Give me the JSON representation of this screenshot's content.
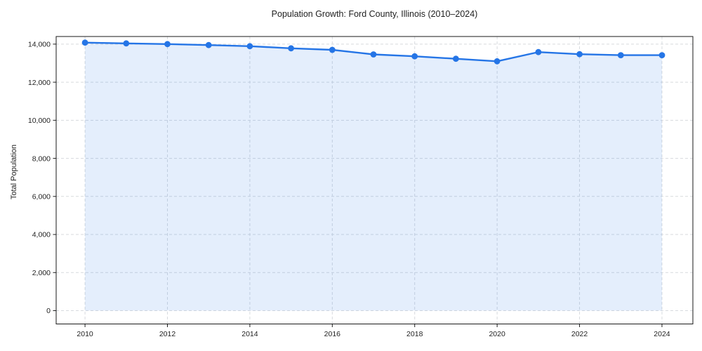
{
  "figure": {
    "background": "#ffffff"
  },
  "chart_data": {
    "type": "area",
    "title": "Population Growth: Ford County, Illinois (2010–2024)",
    "xlabel": "",
    "ylabel": "Total Population",
    "x": [
      2010,
      2011,
      2012,
      2013,
      2014,
      2015,
      2016,
      2017,
      2018,
      2019,
      2020,
      2021,
      2022,
      2023,
      2024
    ],
    "series": [
      {
        "name": "Total Population",
        "values": [
          14080,
          14040,
          14000,
          13950,
          13890,
          13780,
          13700,
          13460,
          13360,
          13230,
          13100,
          13580,
          13470,
          13420,
          13420
        ]
      }
    ],
    "xticks": {
      "values": [
        2010,
        2012,
        2014,
        2016,
        2018,
        2020,
        2022,
        2024
      ],
      "labels": [
        "2010",
        "2012",
        "2014",
        "2016",
        "2018",
        "2020",
        "2022",
        "2024"
      ]
    },
    "yticks": {
      "values": [
        0,
        2000,
        4000,
        6000,
        8000,
        10000,
        12000,
        14000
      ],
      "labels": [
        "0",
        "2,000",
        "4,000",
        "6,000",
        "8,000",
        "10,000",
        "12,000",
        "14,000"
      ]
    },
    "xlim": [
      2009.3,
      2024.75
    ],
    "ylim": [
      -700,
      14400
    ],
    "grid": true,
    "grid_style": "dashed",
    "legend": false,
    "marker": "circle",
    "colors": {
      "line": "#2575e6",
      "marker": "#2575e6",
      "area_fill": "#2575e6",
      "area_opacity": 0.12,
      "grid": "#d7dade",
      "spine": "#1a1a1a",
      "text": "#1f1f1f"
    }
  }
}
